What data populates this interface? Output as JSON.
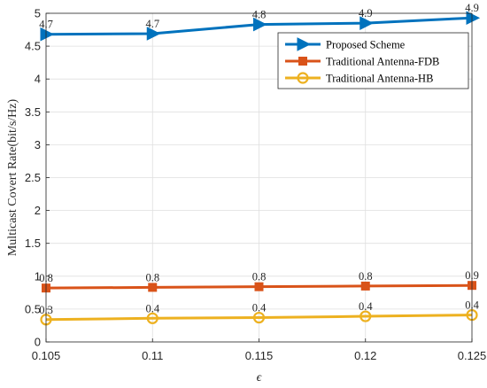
{
  "chart_data": {
    "type": "line",
    "x": [
      0.105,
      0.11,
      0.115,
      0.12,
      0.125
    ],
    "x_tick_labels": [
      "0.105",
      "0.11",
      "0.115",
      "0.12",
      "0.125"
    ],
    "xlim": [
      0.105,
      0.125
    ],
    "ylim": [
      0,
      5
    ],
    "y_ticks": [
      0,
      0.5,
      1,
      1.5,
      2,
      2.5,
      3,
      3.5,
      4,
      4.5,
      5
    ],
    "y_tick_labels": [
      "0",
      "0.5",
      "1",
      "1.5",
      "2",
      "2.5",
      "3",
      "3.5",
      "4",
      "4.5",
      "5"
    ],
    "xlabel": "ϵ",
    "ylabel": "Multicast Covert Rate(bit/s/Hz)",
    "grid": true,
    "legend_position": "top-right",
    "series": [
      {
        "name": "Proposed Scheme",
        "color": "#0072BD",
        "marker": "triangle-right",
        "values": [
          4.68,
          4.69,
          4.83,
          4.85,
          4.93
        ],
        "labels": [
          "4.7",
          "4.7",
          "4.8",
          "4.9",
          "4.9"
        ]
      },
      {
        "name": "Traditional Antenna-FDB",
        "color": "#D95319",
        "marker": "square",
        "values": [
          0.82,
          0.83,
          0.84,
          0.85,
          0.86
        ],
        "labels": [
          "0.8",
          "0.8",
          "0.8",
          "0.8",
          "0.9"
        ]
      },
      {
        "name": "Traditional Antenna-HB",
        "color": "#EDB120",
        "marker": "circle",
        "values": [
          0.34,
          0.36,
          0.37,
          0.39,
          0.41
        ],
        "labels": [
          "0.3",
          "0.4",
          "0.4",
          "0.4",
          "0.4"
        ]
      }
    ]
  }
}
